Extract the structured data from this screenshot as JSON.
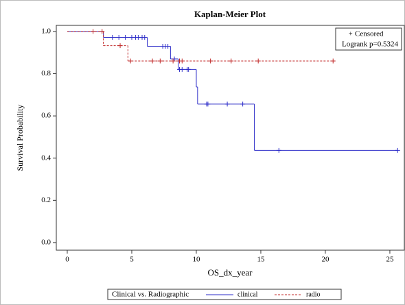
{
  "chart_data": {
    "type": "km",
    "title": "Kaplan-Meier Plot",
    "x_label": "OS_dx_year",
    "y_label": "Survival Probability",
    "inset": {
      "censored_label": "Censored",
      "logrank": "Logrank p=0.5324"
    },
    "legend_title": "Clinical vs. Radiographic",
    "xlim": [
      -0.85,
      26.12
    ],
    "ylim": [
      -0.036,
      1.029
    ],
    "xticks": [
      0,
      5,
      10,
      15,
      20,
      25
    ],
    "yticks": [
      {
        "value": 0,
        "label": "0.0"
      },
      0.2,
      0.4,
      0.6,
      0.8,
      {
        "value": 1,
        "label": "1.0"
      }
    ],
    "series": [
      {
        "name": "clinical",
        "color": "#2b2bc8",
        "dash": false,
        "x": [
          0,
          2.8,
          6.2,
          8.0,
          8.6,
          10.0,
          10.1,
          14.5,
          25.6
        ],
        "values": [
          1.0,
          0.972,
          0.93,
          0.87,
          0.82,
          0.737,
          0.656,
          0.437,
          0.437
        ],
        "censored": {
          "x": [
            3.5,
            4.0,
            4.5,
            5.0,
            5.3,
            5.5,
            5.8,
            6.0,
            7.4,
            7.6,
            7.8,
            8.3,
            8.7,
            8.9,
            9.3,
            9.4,
            10.8,
            10.9,
            12.4,
            13.6,
            16.4,
            25.6
          ],
          "values": [
            0.972,
            0.972,
            0.972,
            0.972,
            0.972,
            0.972,
            0.972,
            0.972,
            0.93,
            0.93,
            0.93,
            0.87,
            0.82,
            0.82,
            0.82,
            0.82,
            0.656,
            0.656,
            0.656,
            0.656,
            0.437,
            0.437
          ]
        }
      },
      {
        "name": "radio",
        "color": "#c02828",
        "dash": true,
        "x": [
          0,
          2.8,
          4.7,
          20.6
        ],
        "values": [
          1.0,
          0.933,
          0.86,
          0.86
        ],
        "censored": {
          "x": [
            2.0,
            2.7,
            4.1,
            4.9,
            6.6,
            7.2,
            8.2,
            8.7,
            8.9,
            11.1,
            12.7,
            14.8,
            20.6
          ],
          "values": [
            1.0,
            1.0,
            0.933,
            0.86,
            0.86,
            0.86,
            0.86,
            0.86,
            0.86,
            0.86,
            0.86,
            0.86,
            0.86
          ]
        }
      }
    ]
  }
}
